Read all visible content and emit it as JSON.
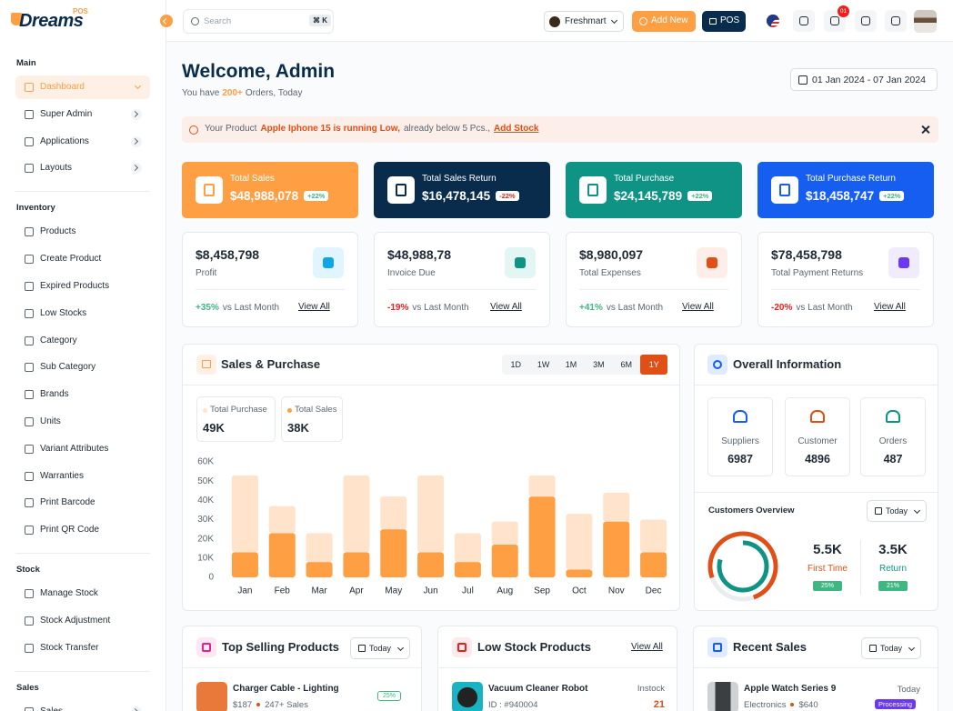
{
  "header": {
    "logo": "Dreams",
    "logo_badge": "POS",
    "search_placeholder": "Search",
    "search_shortcut": "⌘ K",
    "store": "Freshmart",
    "add_new": "Add New",
    "pos": "POS",
    "notification_count": "01"
  },
  "sidebar": {
    "sections": [
      {
        "title": "Main",
        "items": [
          "Dashboard",
          "Super Admin",
          "Applications",
          "Layouts"
        ]
      },
      {
        "title": "Inventory",
        "items": [
          "Products",
          "Create Product",
          "Expired Products",
          "Low Stocks",
          "Category",
          "Sub Category",
          "Brands",
          "Units",
          "Variant Attributes",
          "Warranties",
          "Print Barcode",
          "Print QR Code"
        ]
      },
      {
        "title": "Stock",
        "items": [
          "Manage Stock",
          "Stock Adjustment",
          "Stock Transfer"
        ]
      },
      {
        "title": "Sales",
        "items": [
          "Sales"
        ]
      }
    ]
  },
  "welcome": {
    "title": "Welcome, Admin",
    "subtitle_prefix": "You have",
    "orders": "200+",
    "subtitle_suffix": "Orders, Today",
    "date_range": "01 Jan 2024 - 07 Jan 2024"
  },
  "alert": {
    "prefix": "Your Product",
    "product": "Apple Iphone 15 is running Low,",
    "suffix": "already below 5 Pcs.,",
    "action": "Add Stock"
  },
  "stat_cards": [
    {
      "label": "Total Sales",
      "value": "$48,988,078",
      "change": "+22%",
      "color": "#fe9f43"
    },
    {
      "label": "Total Sales Return",
      "value": "$16,478,145",
      "change": "-22%",
      "color": "#092c4c"
    },
    {
      "label": "Total Purchase",
      "value": "$24,145,789",
      "change": "+22%",
      "color": "#0e9384"
    },
    {
      "label": "Total Purchase Return",
      "value": "$18,458,747",
      "change": "+22%",
      "color": "#155eef"
    }
  ],
  "info_cards": [
    {
      "value": "$8,458,798",
      "label": "Profit",
      "change": "+35%",
      "compare": "vs Last Month",
      "link": "View All"
    },
    {
      "value": "$48,988,78",
      "label": "Invoice Due",
      "change": "-19%",
      "compare": "vs Last Month",
      "link": "View All"
    },
    {
      "value": "$8,980,097",
      "label": "Total Expenses",
      "change": "+41%",
      "compare": "vs Last Month",
      "link": "View All"
    },
    {
      "value": "$78,458,798",
      "label": "Total Payment Returns",
      "change": "-20%",
      "compare": "vs Last Month",
      "link": "View All"
    }
  ],
  "sales_purchase": {
    "title": "Sales & Purchase",
    "ranges": [
      "1D",
      "1W",
      "1M",
      "3M",
      "6M",
      "1Y"
    ],
    "summary": [
      "49K",
      "38K"
    ],
    "chart": {
      "type": "bar",
      "stacked": true,
      "categories": [
        "Jan",
        "Feb",
        "Mar",
        "Apr",
        "May",
        "Jun",
        "Jul",
        "Aug",
        "Sep",
        "Oct",
        "Nov",
        "Dec"
      ],
      "series": [
        {
          "name": "Total Purchase",
          "color": "#ffe3cb",
          "values": [
            40000,
            14000,
            15000,
            40000,
            17000,
            40000,
            15000,
            12000,
            11000,
            29000,
            15000,
            17000
          ]
        },
        {
          "name": "Total Sales",
          "color": "#fe9f43",
          "values": [
            13000,
            23000,
            8000,
            13000,
            25000,
            13000,
            8000,
            17000,
            42000,
            4000,
            29000,
            13000
          ]
        }
      ],
      "ylim": [
        0,
        60000
      ],
      "yticks": [
        0,
        {
          "value": 10000,
          "label": "10K"
        },
        {
          "value": 20000,
          "label": "20K"
        },
        {
          "value": 30000,
          "label": "30K"
        },
        {
          "value": 40000,
          "label": "40K"
        },
        {
          "value": 50000,
          "label": "50K"
        },
        {
          "value": 60000,
          "label": "60K"
        }
      ]
    }
  },
  "overall": {
    "title": "Overall Information",
    "stats": [
      {
        "label": "Suppliers",
        "value": "6987"
      },
      {
        "label": "Customer",
        "value": "4896"
      },
      {
        "label": "Orders",
        "value": "487"
      }
    ],
    "customers_title": "Customers Overview",
    "filter": "Today",
    "groups": [
      {
        "value": "5.5K",
        "label": "First Time",
        "change": "25%"
      },
      {
        "value": "3.5K",
        "label": "Return",
        "change": "21%"
      }
    ]
  },
  "top_selling": {
    "title": "Top Selling Products",
    "filter": "Today",
    "items": [
      {
        "name": "Charger Cable - Lighting",
        "price": "$187",
        "sales": "247+ Sales",
        "change": "25%"
      }
    ]
  },
  "low_stock": {
    "title": "Low Stock Products",
    "link": "View All",
    "items": [
      {
        "name": "Vacuum Cleaner Robot",
        "id": "ID : #940004",
        "stock_label": "Instock",
        "stock": "21"
      }
    ]
  },
  "recent_sales": {
    "title": "Recent Sales",
    "filter": "Today",
    "items": [
      {
        "name": "Apple Watch Series 9",
        "category": "Electronics",
        "price": "$640",
        "date": "Today",
        "status": "Processing"
      }
    ]
  }
}
